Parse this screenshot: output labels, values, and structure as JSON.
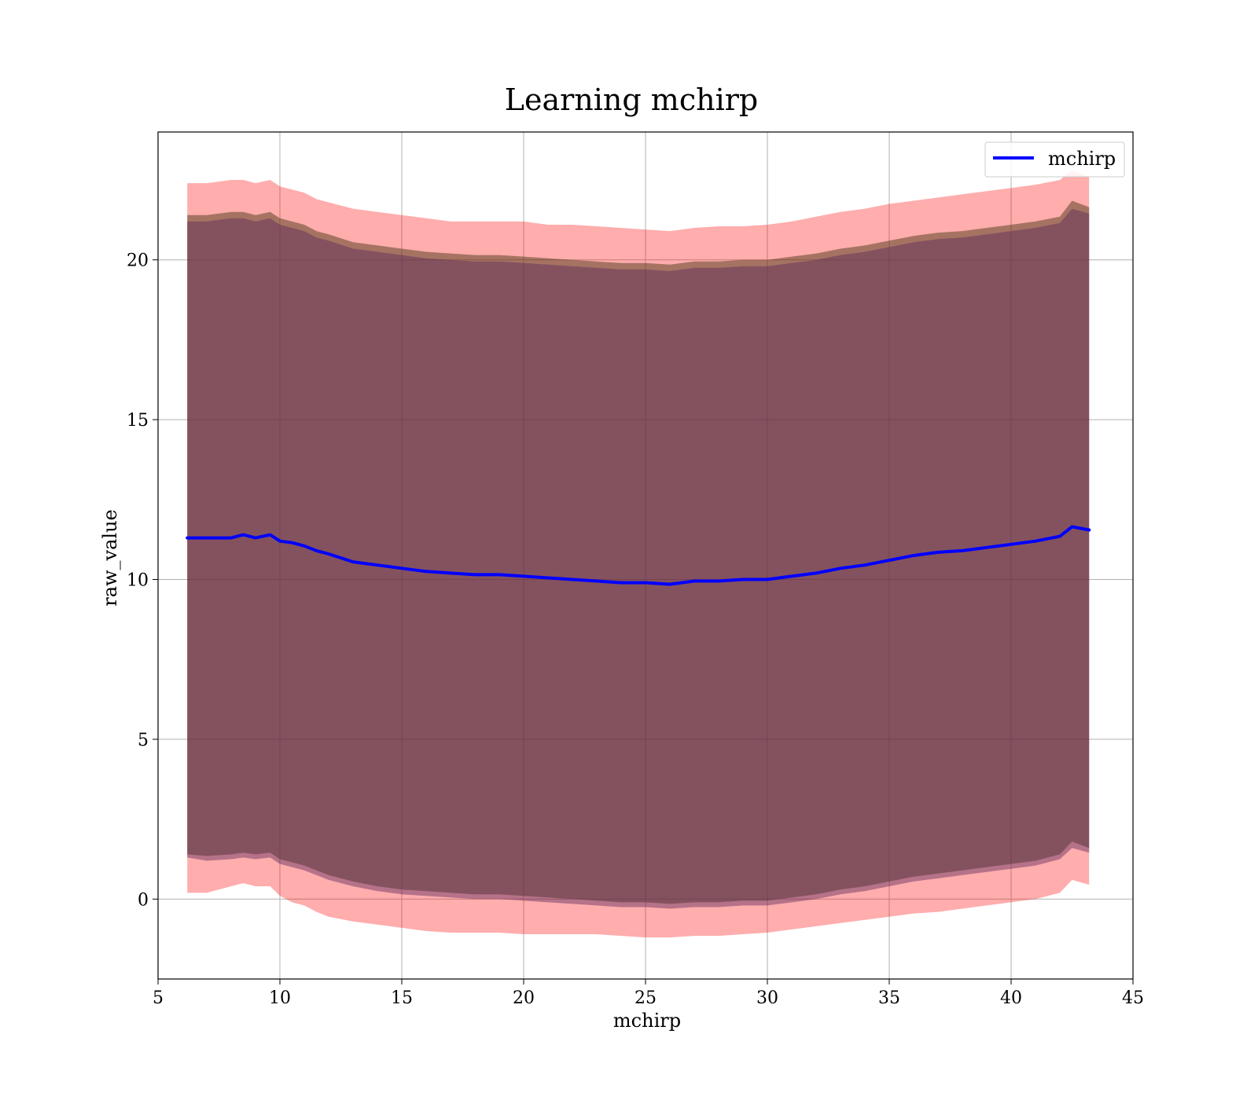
{
  "chart_data": {
    "type": "line",
    "title": "Learning mchirp",
    "xlabel": "mchirp",
    "ylabel": "raw_value",
    "xlim": [
      5,
      45
    ],
    "ylim": [
      -2.5,
      24
    ],
    "xticks": [
      5,
      10,
      15,
      20,
      25,
      30,
      35,
      40,
      45
    ],
    "yticks": [
      0,
      5,
      10,
      15,
      20
    ],
    "grid": true,
    "legend_position": "top-right",
    "series": [
      {
        "name": "mchirp",
        "color": "#0000ff",
        "x": [
          6.2,
          7.0,
          8.0,
          8.5,
          9.0,
          9.6,
          10.0,
          10.5,
          11.0,
          11.5,
          12.0,
          13.0,
          14.0,
          15.0,
          16.0,
          17.0,
          18.0,
          19.0,
          20.0,
          21.0,
          22.0,
          23.0,
          24.0,
          25.0,
          26.0,
          27.0,
          28.0,
          29.0,
          30.0,
          31.0,
          32.0,
          33.0,
          34.0,
          35.0,
          36.0,
          37.0,
          38.0,
          39.0,
          40.0,
          41.0,
          42.0,
          42.5,
          43.2
        ],
        "y": [
          11.3,
          11.3,
          11.3,
          11.4,
          11.3,
          11.4,
          11.2,
          11.15,
          11.05,
          10.9,
          10.8,
          10.55,
          10.45,
          10.35,
          10.25,
          10.2,
          10.15,
          10.15,
          10.1,
          10.05,
          10.0,
          9.95,
          9.9,
          9.9,
          9.85,
          9.95,
          9.95,
          10.0,
          10.0,
          10.1,
          10.2,
          10.35,
          10.45,
          10.6,
          10.75,
          10.85,
          10.9,
          11.0,
          11.1,
          11.2,
          11.35,
          11.65,
          11.55
        ]
      }
    ],
    "bands": [
      {
        "color": "#ff0000",
        "opacity": 0.32,
        "lower": [
          0.2,
          0.2,
          0.4,
          0.5,
          0.4,
          0.4,
          0.1,
          -0.1,
          -0.2,
          -0.4,
          -0.55,
          -0.7,
          -0.8,
          -0.9,
          -1.0,
          -1.05,
          -1.05,
          -1.05,
          -1.1,
          -1.1,
          -1.1,
          -1.1,
          -1.15,
          -1.2,
          -1.2,
          -1.15,
          -1.15,
          -1.1,
          -1.05,
          -0.95,
          -0.85,
          -0.75,
          -0.65,
          -0.55,
          -0.45,
          -0.4,
          -0.3,
          -0.2,
          -0.1,
          0.0,
          0.2,
          0.6,
          0.45
        ],
        "upper": [
          22.4,
          22.4,
          22.5,
          22.5,
          22.4,
          22.5,
          22.3,
          22.2,
          22.1,
          21.9,
          21.8,
          21.6,
          21.5,
          21.4,
          21.3,
          21.2,
          21.2,
          21.2,
          21.2,
          21.1,
          21.1,
          21.05,
          21.0,
          20.95,
          20.9,
          21.0,
          21.05,
          21.05,
          21.1,
          21.2,
          21.35,
          21.5,
          21.6,
          21.75,
          21.85,
          21.95,
          22.05,
          22.15,
          22.25,
          22.35,
          22.5,
          22.8,
          22.6
        ]
      },
      {
        "color": "#4d3a1a",
        "opacity": 0.5,
        "lower": [
          1.4,
          1.35,
          1.4,
          1.45,
          1.4,
          1.45,
          1.25,
          1.15,
          1.05,
          0.9,
          0.75,
          0.55,
          0.4,
          0.3,
          0.25,
          0.2,
          0.15,
          0.15,
          0.1,
          0.05,
          0.0,
          -0.05,
          -0.1,
          -0.1,
          -0.15,
          -0.1,
          -0.1,
          -0.05,
          -0.05,
          0.05,
          0.15,
          0.3,
          0.4,
          0.55,
          0.7,
          0.8,
          0.9,
          1.0,
          1.1,
          1.2,
          1.4,
          1.8,
          1.6
        ],
        "upper": [
          21.4,
          21.4,
          21.5,
          21.5,
          21.4,
          21.5,
          21.3,
          21.2,
          21.1,
          20.9,
          20.8,
          20.55,
          20.45,
          20.35,
          20.25,
          20.2,
          20.15,
          20.15,
          20.1,
          20.05,
          20.0,
          19.95,
          19.9,
          19.9,
          19.85,
          19.95,
          19.95,
          20.0,
          20.0,
          20.1,
          20.2,
          20.35,
          20.45,
          20.6,
          20.75,
          20.85,
          20.9,
          21.0,
          21.1,
          21.2,
          21.35,
          21.85,
          21.65
        ]
      },
      {
        "color": "#5a2a5a",
        "opacity": 0.45,
        "lower": [
          1.3,
          1.2,
          1.25,
          1.3,
          1.25,
          1.3,
          1.1,
          1.0,
          0.9,
          0.75,
          0.6,
          0.4,
          0.25,
          0.15,
          0.1,
          0.05,
          0.0,
          0.0,
          -0.05,
          -0.1,
          -0.15,
          -0.2,
          -0.25,
          -0.25,
          -0.3,
          -0.25,
          -0.25,
          -0.2,
          -0.2,
          -0.1,
          0.0,
          0.15,
          0.25,
          0.4,
          0.55,
          0.65,
          0.75,
          0.85,
          0.95,
          1.05,
          1.25,
          1.6,
          1.45
        ],
        "upper": [
          21.2,
          21.2,
          21.3,
          21.3,
          21.2,
          21.3,
          21.1,
          21.0,
          20.9,
          20.7,
          20.6,
          20.35,
          20.25,
          20.15,
          20.05,
          20.0,
          19.95,
          19.95,
          19.9,
          19.85,
          19.8,
          19.75,
          19.7,
          19.7,
          19.65,
          19.75,
          19.75,
          19.8,
          19.8,
          19.9,
          20.0,
          20.15,
          20.25,
          20.4,
          20.55,
          20.65,
          20.7,
          20.8,
          20.9,
          21.0,
          21.15,
          21.6,
          21.45
        ]
      }
    ]
  }
}
